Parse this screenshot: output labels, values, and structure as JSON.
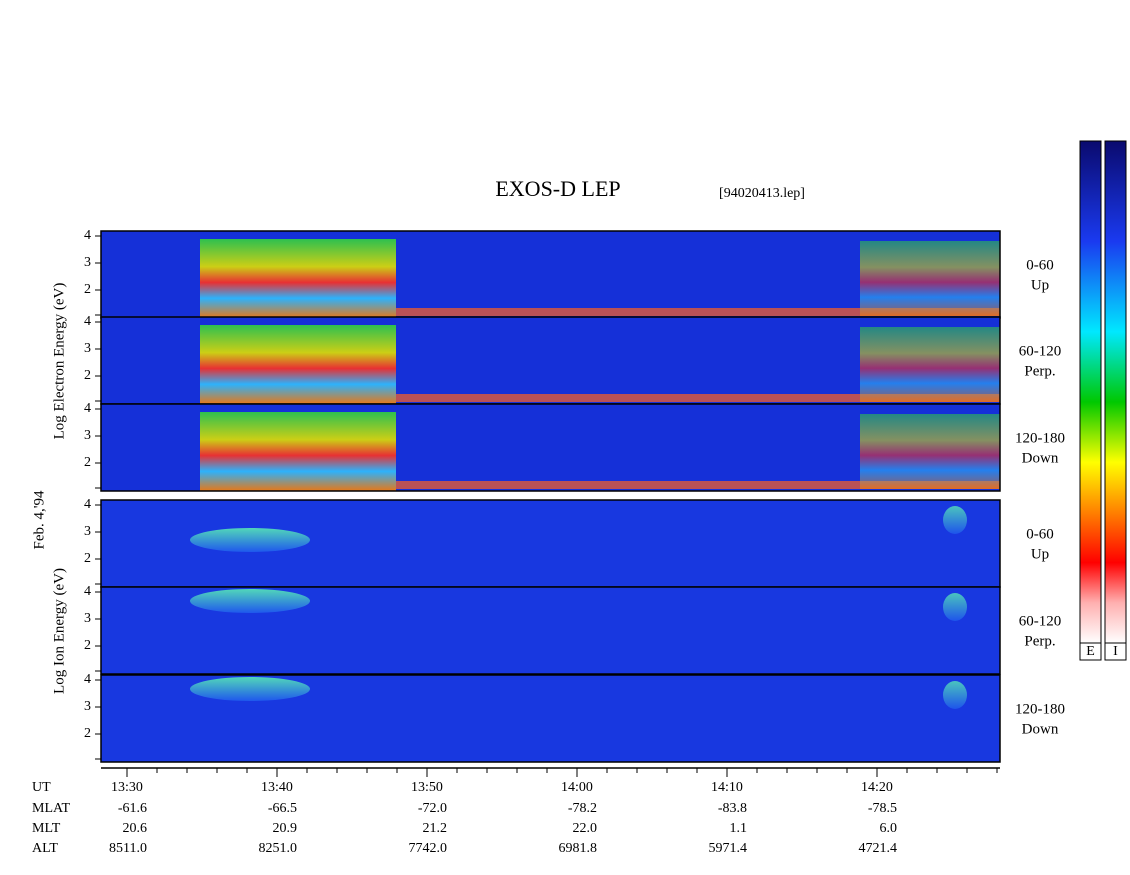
{
  "title": "EXOS-D LEP",
  "file": "[94020413.lep]",
  "date_label": "Feb. 4,'94",
  "groups": [
    {
      "label": "Log Electron Energy (eV)",
      "panels": [
        {
          "angle": "0-60",
          "direction": "Up"
        },
        {
          "angle": "60-120",
          "direction": "Perp."
        },
        {
          "angle": "120-180",
          "direction": "Down"
        }
      ]
    },
    {
      "label": "Log Ion Energy (eV)",
      "panels": [
        {
          "angle": "0-60",
          "direction": "Up"
        },
        {
          "angle": "60-120",
          "direction": "Perp."
        },
        {
          "angle": "120-180",
          "direction": "Down"
        }
      ]
    }
  ],
  "yticks": [
    2,
    3,
    4
  ],
  "time_axis": {
    "row_labels": [
      "UT",
      "MLAT",
      "MLT",
      "ALT"
    ],
    "columns": [
      [
        "13:30",
        "-61.6",
        "20.6",
        "8511.0"
      ],
      [
        "13:40",
        "-66.5",
        "20.9",
        "8251.0"
      ],
      [
        "13:50",
        "-72.0",
        "21.2",
        "7742.0"
      ],
      [
        "14:00",
        "-78.2",
        "22.0",
        "6981.8"
      ],
      [
        "14:10",
        "-83.8",
        "1.1",
        "5971.4"
      ],
      [
        "14:20",
        "-78.5",
        "6.0",
        "4721.4"
      ]
    ]
  },
  "colorbar_labels": [
    "E",
    "I"
  ]
}
